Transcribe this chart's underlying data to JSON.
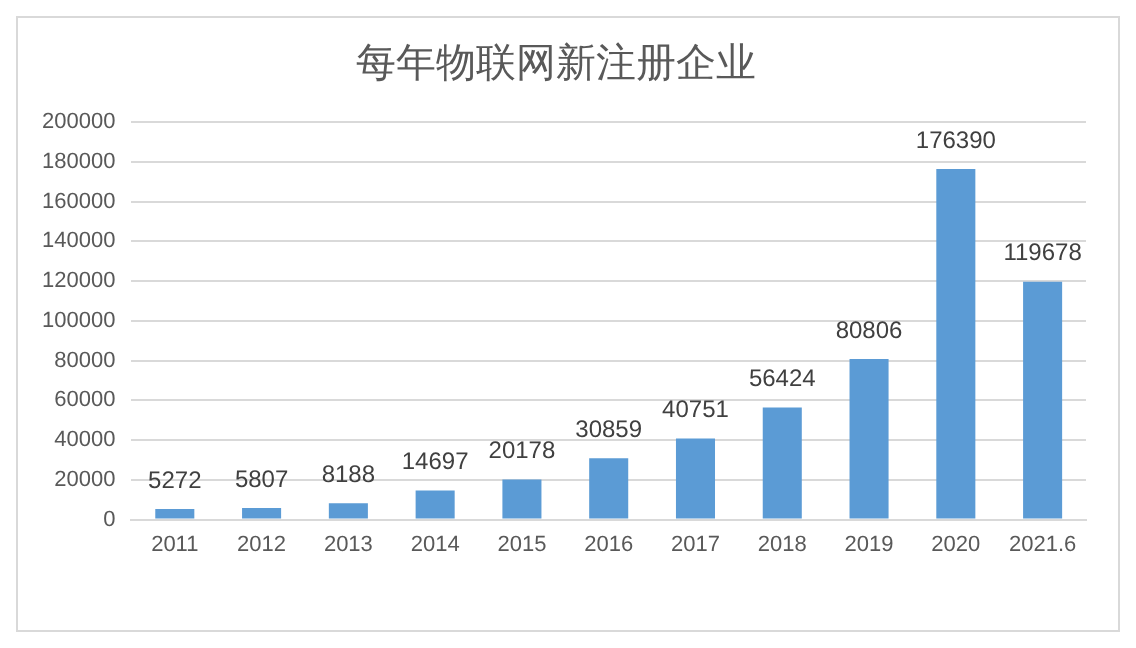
{
  "chart_data": {
    "type": "bar",
    "title": "每年物联网新注册企业",
    "categories": [
      "2011",
      "2012",
      "2013",
      "2014",
      "2015",
      "2016",
      "2017",
      "2018",
      "2019",
      "2020",
      "2021.6"
    ],
    "values": [
      5272,
      5807,
      8188,
      14697,
      20178,
      30859,
      40751,
      56424,
      80806,
      176390,
      119678
    ],
    "color": "#5b9bd5",
    "ylim": [
      0,
      200000
    ],
    "yticks": [
      0,
      20000,
      40000,
      60000,
      80000,
      100000,
      120000,
      140000,
      160000,
      180000,
      200000
    ],
    "grid": "y",
    "data_labels": true,
    "legend": false
  }
}
